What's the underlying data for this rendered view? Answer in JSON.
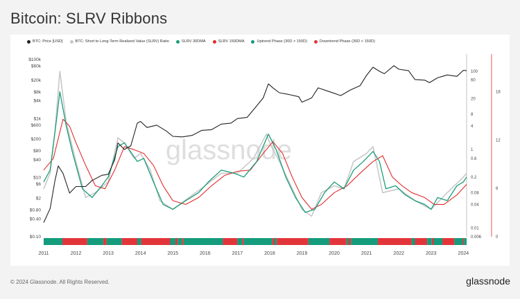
{
  "title": "Bitcoin: SLRV Ribbons",
  "footer": {
    "copyright": "© 2024 Glassnode. All Rights Reserved.",
    "brand": "glassnode"
  },
  "watermark": "glassnode",
  "colors": {
    "price": "#222222",
    "ratio": "#c8c8c8",
    "ma30": "#1a9c7a",
    "ma150": "#e02b2b",
    "uptrend": "#149c7c",
    "downtrend": "#e2353a"
  },
  "legend": [
    {
      "label": "BTC: Price [USD]",
      "color": "#222222"
    },
    {
      "label": "BTC: Short to Long-Term Realized Value (SLRV) Ratio",
      "color": "#c8c8c8"
    },
    {
      "label": "SLRV 30DMA",
      "color": "#1a9c7a"
    },
    {
      "label": "SLRV 150DMA",
      "color": "#e02b2b"
    },
    {
      "label": "Uptrend Phase (30D > 150D)",
      "color": "#149c7c"
    },
    {
      "label": "Downtrend Phase (30D < 150D)",
      "color": "#e2353a"
    }
  ],
  "chart_data": {
    "type": "line",
    "x_range": [
      2011.0,
      2024.1
    ],
    "x_ticks": [
      "2011",
      "2012",
      "2013",
      "2014",
      "2015",
      "2016",
      "2017",
      "2018",
      "2019",
      "2020",
      "2021",
      "2022",
      "2023",
      "2024"
    ],
    "y_left": {
      "scale": "log",
      "range": [
        0.1,
        100000
      ],
      "tick_labels": [
        "$100k",
        "$60k",
        "$20k",
        "$8k",
        "$4k",
        "$1k",
        "$600",
        "$200",
        "$80",
        "$40",
        "$10",
        "$6",
        "$2",
        "$0.80",
        "$0.40",
        "$0.10"
      ],
      "tick_values": [
        100000,
        60000,
        20000,
        8000,
        4000,
        1000,
        600,
        200,
        80,
        40,
        10,
        6,
        2,
        0.8,
        0.4,
        0.1
      ]
    },
    "y_right_ratio": {
      "scale": "log",
      "range": [
        0.006,
        200
      ],
      "tick_labels": [
        "100",
        "60",
        "20",
        "8",
        "4",
        "1",
        "0.6",
        "0.2",
        "0.08",
        "0.04",
        "0.01",
        "0.006"
      ],
      "tick_values": [
        100,
        60,
        20,
        8,
        4,
        1,
        0.6,
        0.2,
        0.08,
        0.04,
        0.01,
        0.006
      ]
    },
    "y_right_outer": {
      "scale": "linear",
      "range": [
        0,
        22
      ],
      "tick_labels": [
        "18",
        "12",
        "6",
        "0"
      ],
      "tick_values": [
        18,
        12,
        6,
        0
      ]
    },
    "series": [
      {
        "name": "BTC: Price [USD]",
        "axis": "left",
        "x": [
          2011.0,
          2011.2,
          2011.35,
          2011.45,
          2011.6,
          2011.8,
          2012.0,
          2012.3,
          2012.5,
          2012.8,
          2013.0,
          2013.2,
          2013.3,
          2013.5,
          2013.7,
          2013.9,
          2014.0,
          2014.2,
          2014.5,
          2014.8,
          2015.0,
          2015.3,
          2015.6,
          2015.9,
          2016.2,
          2016.5,
          2016.8,
          2017.0,
          2017.3,
          2017.6,
          2017.8,
          2017.96,
          2018.1,
          2018.3,
          2018.6,
          2018.9,
          2019.0,
          2019.3,
          2019.5,
          2019.8,
          2020.0,
          2020.2,
          2020.5,
          2020.8,
          2021.0,
          2021.2,
          2021.4,
          2021.55,
          2021.85,
          2022.0,
          2022.3,
          2022.5,
          2022.8,
          2022.95,
          2023.2,
          2023.5,
          2023.8,
          2024.0,
          2024.1
        ],
        "y": [
          0.3,
          0.9,
          8,
          25,
          14,
          3,
          5,
          5,
          8,
          12,
          13,
          40,
          150,
          90,
          120,
          700,
          800,
          500,
          600,
          380,
          250,
          240,
          270,
          400,
          420,
          650,
          700,
          1000,
          1100,
          2700,
          5000,
          15000,
          11000,
          7500,
          6500,
          5500,
          3600,
          5000,
          11000,
          8500,
          7200,
          6000,
          9300,
          13000,
          29000,
          55000,
          40000,
          33000,
          62000,
          47000,
          42000,
          21000,
          20000,
          16500,
          24000,
          30000,
          27000,
          43000,
          42000
        ]
      },
      {
        "name": "BTC: Short to Long-Term Realized Value (SLRV) Ratio",
        "axis": "right",
        "x": [
          2011.0,
          2011.2,
          2011.35,
          2011.5,
          2011.7,
          2012.0,
          2012.3,
          2012.6,
          2013.0,
          2013.3,
          2013.5,
          2013.8,
          2014.0,
          2014.3,
          2014.6,
          2015.0,
          2015.5,
          2016.0,
          2016.5,
          2017.0,
          2017.5,
          2017.9,
          2018.0,
          2018.3,
          2018.6,
          2019.0,
          2019.3,
          2019.6,
          2020.0,
          2020.3,
          2020.6,
          2021.0,
          2021.2,
          2021.5,
          2022.0,
          2022.5,
          2023.0,
          2023.5,
          2024.0,
          2024.1
        ],
        "y": [
          0.1,
          0.25,
          3,
          100,
          5,
          0.5,
          0.06,
          0.08,
          0.15,
          2,
          1.5,
          0.6,
          0.8,
          0.3,
          0.05,
          0.03,
          0.06,
          0.12,
          0.25,
          0.25,
          0.6,
          2.5,
          1.5,
          0.5,
          0.15,
          0.03,
          0.02,
          0.08,
          0.12,
          0.1,
          0.5,
          0.8,
          1.2,
          0.08,
          0.1,
          0.05,
          0.03,
          0.08,
          0.2,
          0.25
        ]
      },
      {
        "name": "SLRV 30DMA",
        "axis": "right",
        "x": [
          2011.0,
          2011.2,
          2011.4,
          2011.5,
          2011.7,
          2011.9,
          2012.2,
          2012.5,
          2012.8,
          2013.0,
          2013.3,
          2013.5,
          2013.9,
          2014.1,
          2014.4,
          2014.7,
          2015.0,
          2015.4,
          2015.8,
          2016.1,
          2016.5,
          2016.9,
          2017.2,
          2017.6,
          2017.96,
          2018.2,
          2018.5,
          2018.8,
          2019.1,
          2019.4,
          2019.7,
          2020.0,
          2020.3,
          2020.6,
          2020.9,
          2021.2,
          2021.4,
          2021.6,
          2021.9,
          2022.2,
          2022.5,
          2022.8,
          2023.0,
          2023.2,
          2023.5,
          2023.8,
          2024.0,
          2024.1
        ],
        "y": [
          0.15,
          0.3,
          6,
          30,
          4,
          0.8,
          0.1,
          0.06,
          0.12,
          0.2,
          1.2,
          1.5,
          0.5,
          0.6,
          0.15,
          0.04,
          0.03,
          0.05,
          0.08,
          0.15,
          0.3,
          0.25,
          0.2,
          0.5,
          2.5,
          1.0,
          0.2,
          0.06,
          0.025,
          0.03,
          0.08,
          0.15,
          0.1,
          0.3,
          0.5,
          0.9,
          0.5,
          0.1,
          0.12,
          0.07,
          0.05,
          0.04,
          0.03,
          0.06,
          0.05,
          0.12,
          0.15,
          0.2
        ]
      },
      {
        "name": "SLRV 150DMA",
        "axis": "right",
        "x": [
          2011.0,
          2011.3,
          2011.6,
          2011.8,
          2012.0,
          2012.3,
          2012.6,
          2012.9,
          2013.2,
          2013.5,
          2013.8,
          2014.1,
          2014.4,
          2014.7,
          2015.0,
          2015.4,
          2015.8,
          2016.2,
          2016.6,
          2017.0,
          2017.4,
          2017.8,
          2018.1,
          2018.4,
          2018.7,
          2019.0,
          2019.3,
          2019.6,
          2020.0,
          2020.4,
          2020.8,
          2021.2,
          2021.5,
          2021.8,
          2022.1,
          2022.4,
          2022.8,
          2023.1,
          2023.4,
          2023.8,
          2024.1
        ],
        "y": [
          0.3,
          0.6,
          6,
          4,
          1.5,
          0.4,
          0.12,
          0.1,
          0.3,
          1.2,
          1.0,
          0.8,
          0.4,
          0.12,
          0.05,
          0.04,
          0.06,
          0.12,
          0.22,
          0.28,
          0.3,
          0.8,
          1.6,
          0.8,
          0.2,
          0.06,
          0.03,
          0.04,
          0.08,
          0.12,
          0.25,
          0.5,
          0.7,
          0.2,
          0.12,
          0.08,
          0.06,
          0.04,
          0.04,
          0.07,
          0.13
        ]
      }
    ],
    "phase_bar": {
      "name": "Trend phase",
      "segments": [
        {
          "start": 2011.0,
          "end": 2011.58,
          "phase": "uptrend"
        },
        {
          "start": 2011.58,
          "end": 2012.35,
          "phase": "downtrend"
        },
        {
          "start": 2012.35,
          "end": 2012.85,
          "phase": "uptrend"
        },
        {
          "start": 2012.85,
          "end": 2012.95,
          "phase": "downtrend"
        },
        {
          "start": 2012.95,
          "end": 2013.42,
          "phase": "uptrend"
        },
        {
          "start": 2013.42,
          "end": 2013.9,
          "phase": "downtrend"
        },
        {
          "start": 2013.9,
          "end": 2014.02,
          "phase": "uptrend"
        },
        {
          "start": 2014.02,
          "end": 2014.92,
          "phase": "downtrend"
        },
        {
          "start": 2014.92,
          "end": 2015.08,
          "phase": "uptrend"
        },
        {
          "start": 2015.08,
          "end": 2015.15,
          "phase": "downtrend"
        },
        {
          "start": 2015.15,
          "end": 2015.28,
          "phase": "uptrend"
        },
        {
          "start": 2015.28,
          "end": 2015.33,
          "phase": "downtrend"
        },
        {
          "start": 2015.33,
          "end": 2016.55,
          "phase": "uptrend"
        },
        {
          "start": 2016.55,
          "end": 2017.0,
          "phase": "downtrend"
        },
        {
          "start": 2017.0,
          "end": 2017.15,
          "phase": "uptrend"
        },
        {
          "start": 2017.15,
          "end": 2017.2,
          "phase": "downtrend"
        },
        {
          "start": 2017.2,
          "end": 2018.08,
          "phase": "uptrend"
        },
        {
          "start": 2018.08,
          "end": 2018.15,
          "phase": "downtrend"
        },
        {
          "start": 2018.15,
          "end": 2018.22,
          "phase": "uptrend"
        },
        {
          "start": 2018.22,
          "end": 2019.2,
          "phase": "downtrend"
        },
        {
          "start": 2019.2,
          "end": 2019.85,
          "phase": "uptrend"
        },
        {
          "start": 2019.85,
          "end": 2020.38,
          "phase": "downtrend"
        },
        {
          "start": 2020.38,
          "end": 2020.45,
          "phase": "uptrend"
        },
        {
          "start": 2020.45,
          "end": 2020.52,
          "phase": "downtrend"
        },
        {
          "start": 2020.52,
          "end": 2021.35,
          "phase": "uptrend"
        },
        {
          "start": 2021.35,
          "end": 2022.4,
          "phase": "downtrend"
        },
        {
          "start": 2022.4,
          "end": 2022.5,
          "phase": "uptrend"
        },
        {
          "start": 2022.5,
          "end": 2022.88,
          "phase": "downtrend"
        },
        {
          "start": 2022.88,
          "end": 2023.02,
          "phase": "uptrend"
        },
        {
          "start": 2023.02,
          "end": 2023.08,
          "phase": "downtrend"
        },
        {
          "start": 2023.08,
          "end": 2023.35,
          "phase": "uptrend"
        },
        {
          "start": 2023.35,
          "end": 2023.72,
          "phase": "downtrend"
        },
        {
          "start": 2023.72,
          "end": 2023.98,
          "phase": "uptrend"
        },
        {
          "start": 2023.98,
          "end": 2024.02,
          "phase": "downtrend"
        },
        {
          "start": 2024.02,
          "end": 2024.1,
          "phase": "uptrend"
        }
      ]
    }
  }
}
